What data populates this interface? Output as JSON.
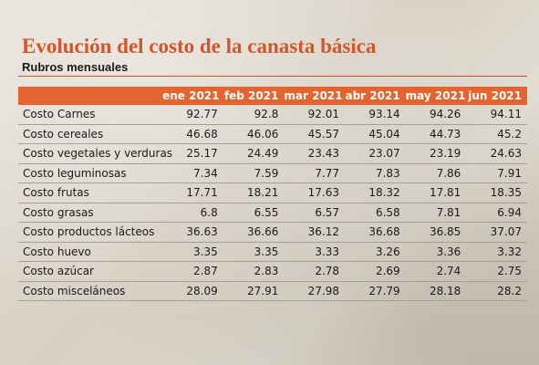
{
  "title": "Evolución del costo de la canasta básica",
  "subtitle": "Rubros mensuales",
  "table": {
    "corner": "",
    "columns": [
      "ene 2021",
      "feb 2021",
      "mar 2021",
      "abr 2021",
      "may 2021",
      "jun 2021"
    ],
    "rows": [
      {
        "label": "Costo Carnes",
        "values": [
          "92.77",
          "92.8",
          "92.01",
          "93.14",
          "94.26",
          "94.11"
        ]
      },
      {
        "label": "Costo cereales",
        "values": [
          "46.68",
          "46.06",
          "45.57",
          "45.04",
          "44.73",
          "45.2"
        ]
      },
      {
        "label": "Costo vegetales y verduras",
        "values": [
          "25.17",
          "24.49",
          "23.43",
          "23.07",
          "23.19",
          "24.63"
        ]
      },
      {
        "label": "Costo leguminosas",
        "values": [
          "7.34",
          "7.59",
          "7.77",
          "7.83",
          "7.86",
          "7.91"
        ]
      },
      {
        "label": "Costo frutas",
        "values": [
          "17.71",
          "18.21",
          "17.63",
          "18.32",
          "17.81",
          "18.35"
        ]
      },
      {
        "label": "Costo grasas",
        "values": [
          "6.8",
          "6.55",
          "6.57",
          "6.58",
          "7.81",
          "6.94"
        ]
      },
      {
        "label": "Costo productos lácteos",
        "values": [
          "36.63",
          "36.66",
          "36.12",
          "36.68",
          "36.85",
          "37.07"
        ]
      },
      {
        "label": "Costo huevo",
        "values": [
          "3.35",
          "3.35",
          "3.33",
          "3.26",
          "3.36",
          "3.32"
        ]
      },
      {
        "label": "Costo azúcar",
        "values": [
          "2.87",
          "2.83",
          "2.78",
          "2.69",
          "2.74",
          "2.75"
        ]
      },
      {
        "label": "Costo misceláneos",
        "values": [
          "28.09",
          "27.91",
          "27.98",
          "27.79",
          "28.18",
          "28.2"
        ]
      }
    ]
  }
}
